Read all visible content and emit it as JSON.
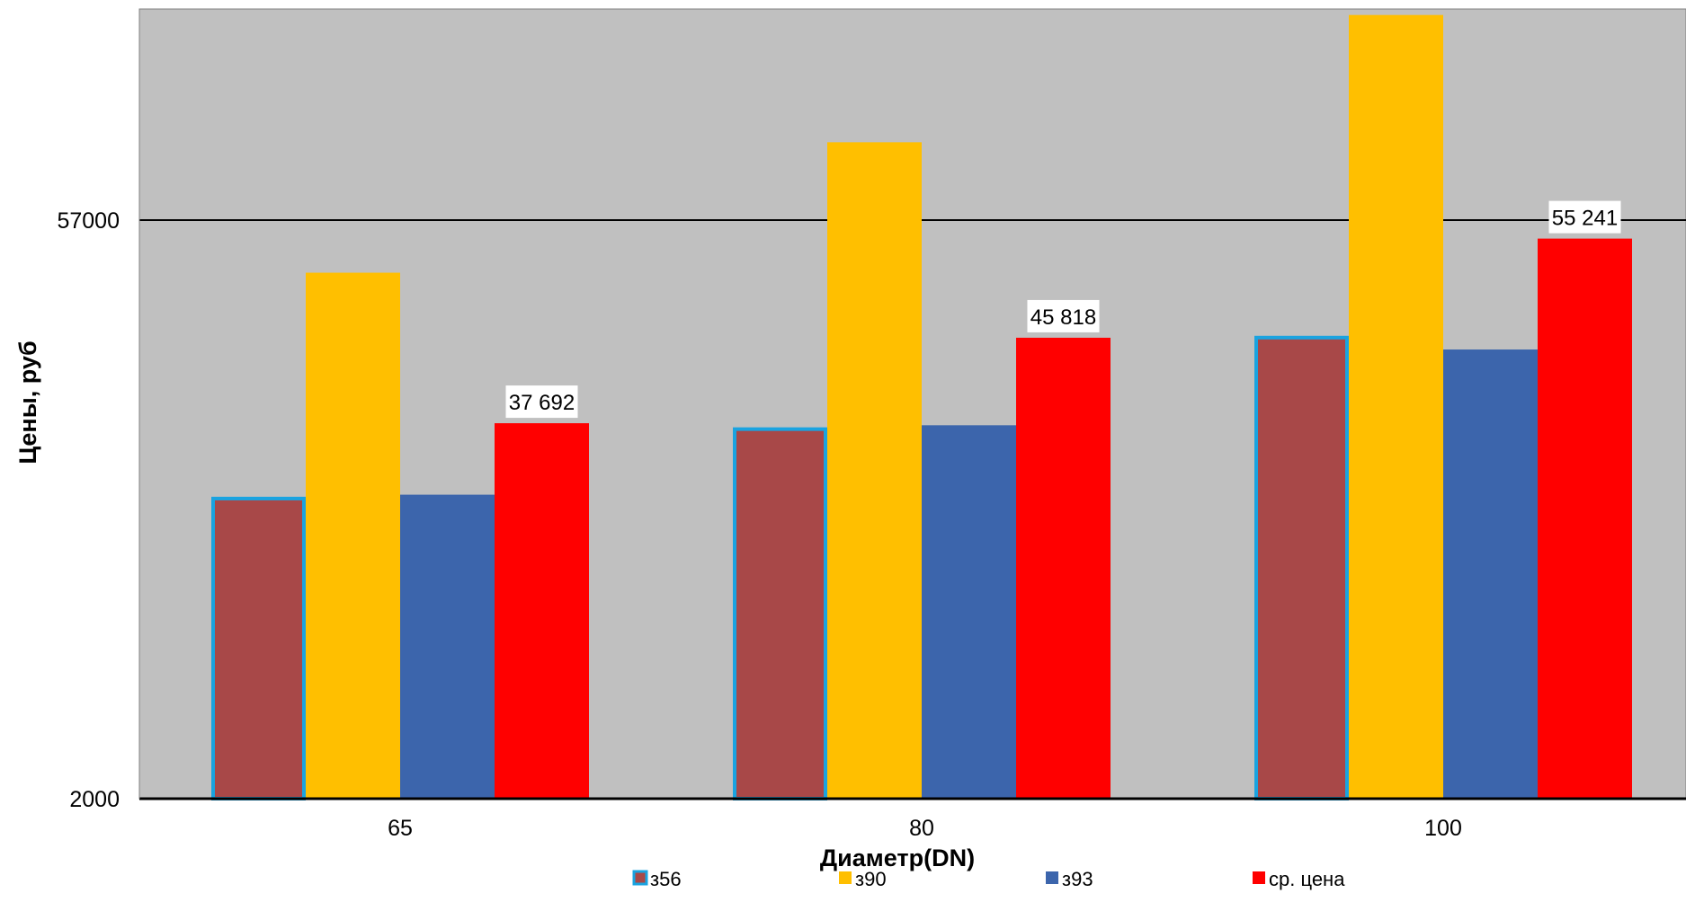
{
  "chart_data": {
    "type": "bar",
    "title": "",
    "xlabel": "Диаметр(DN)",
    "ylabel": "Цены, руб",
    "categories": [
      "65",
      "80",
      "100"
    ],
    "y_ticks": [
      2000,
      57000
    ],
    "ylim": [
      2000,
      77000
    ],
    "grid": true,
    "legend_position": "bottom",
    "series": [
      {
        "name": "з56",
        "values": [
          30700,
          37300,
          46000
        ],
        "color": "#a84848",
        "outline_color": "#1aa3e0"
      },
      {
        "name": "з90",
        "values": [
          52000,
          64400,
          76500
        ],
        "color": "#ffbf00"
      },
      {
        "name": "з93",
        "values": [
          30900,
          37500,
          44700
        ],
        "color": "#3c65ac"
      },
      {
        "name": "ср. цена",
        "values": [
          37692,
          45818,
          55241
        ],
        "color": "#ff0000",
        "data_labels": [
          "37 692",
          "45 818",
          "55 241"
        ]
      }
    ],
    "plot_background": "#c0c0c0"
  }
}
